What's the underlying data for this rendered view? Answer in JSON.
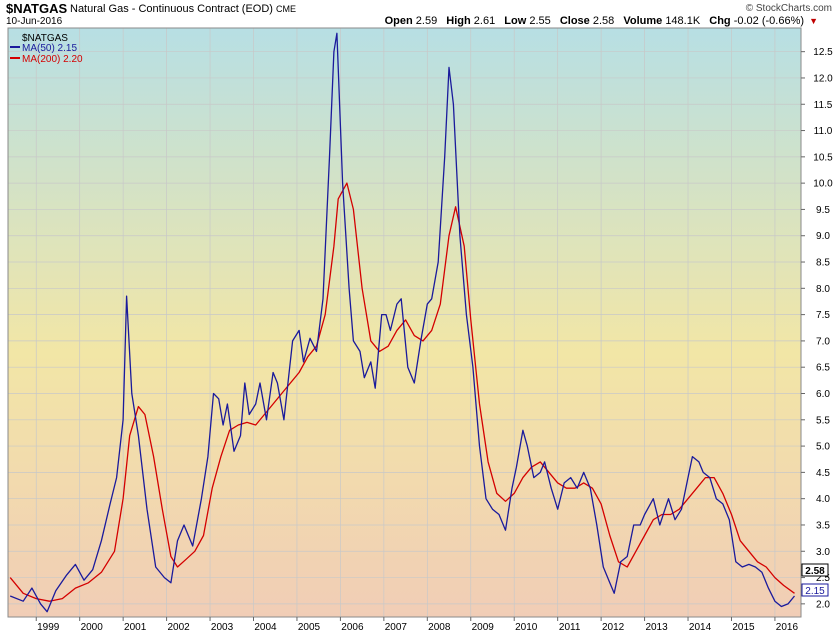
{
  "header": {
    "symbol": "$NATGAS",
    "name": "Natural Gas - Continuous Contract (EOD)",
    "exchange": "CME",
    "date": "10-Jun-2016",
    "source": "© StockCharts.com",
    "open_label": "Open",
    "open": "2.59",
    "high_label": "High",
    "high": "2.61",
    "low_label": "Low",
    "low": "2.55",
    "close_label": "Close",
    "close": "2.58",
    "volume_label": "Volume",
    "volume": "148.1K",
    "chg_label": "Chg",
    "chg": "-0.02 (-0.66%)"
  },
  "legend": {
    "title": "$NATGAS",
    "ma50": "MA(50) 2.15",
    "ma200": "MA(200) 2.20"
  },
  "colors": {
    "ma50": "#1a1a9c",
    "ma200": "#d40000",
    "bg_top": "#b7dfe4",
    "bg_mid": "#f2e6a6",
    "bg_bottom": "#f1cdb6",
    "grid": "#c8c8c8"
  },
  "chart_data": {
    "type": "line",
    "xlabel": "",
    "ylabel": "",
    "grid": true,
    "legend_placement": "top-left",
    "ylim": [
      1.75,
      12.95
    ],
    "xlim": [
      1998.35,
      2016.6
    ],
    "x_tick_labels": [
      "1999",
      "2000",
      "2001",
      "2002",
      "2003",
      "2004",
      "2005",
      "2006",
      "2007",
      "2008",
      "2009",
      "2010",
      "2011",
      "2012",
      "2013",
      "2014",
      "2015",
      "2016"
    ],
    "y_tick_labels": [
      "2.0",
      "2.5",
      "3.0",
      "3.5",
      "4.0",
      "4.5",
      "5.0",
      "5.5",
      "6.0",
      "6.5",
      "7.0",
      "7.5",
      "8.0",
      "8.5",
      "9.0",
      "9.5",
      "10.0",
      "10.5",
      "11.0",
      "11.5",
      "12.0",
      "12.5"
    ],
    "last_values": {
      "close": "2.58",
      "ma": "2.15"
    },
    "series": [
      {
        "name": "MA(50) 2.15",
        "color": "#1a1a9c",
        "points": [
          [
            1998.4,
            2.15
          ],
          [
            1998.7,
            2.05
          ],
          [
            1998.9,
            2.3
          ],
          [
            1999.1,
            2.0
          ],
          [
            1999.25,
            1.85
          ],
          [
            1999.45,
            2.25
          ],
          [
            1999.7,
            2.55
          ],
          [
            1999.9,
            2.75
          ],
          [
            2000.1,
            2.45
          ],
          [
            2000.3,
            2.65
          ],
          [
            2000.5,
            3.2
          ],
          [
            2000.7,
            3.9
          ],
          [
            2000.85,
            4.4
          ],
          [
            2001.0,
            5.5
          ],
          [
            2001.08,
            7.85
          ],
          [
            2001.2,
            6.0
          ],
          [
            2001.35,
            5.2
          ],
          [
            2001.55,
            3.8
          ],
          [
            2001.75,
            2.7
          ],
          [
            2001.95,
            2.5
          ],
          [
            2002.1,
            2.4
          ],
          [
            2002.25,
            3.2
          ],
          [
            2002.4,
            3.5
          ],
          [
            2002.6,
            3.1
          ],
          [
            2002.8,
            4.0
          ],
          [
            2002.95,
            4.8
          ],
          [
            2003.08,
            6.0
          ],
          [
            2003.2,
            5.9
          ],
          [
            2003.3,
            5.4
          ],
          [
            2003.4,
            5.8
          ],
          [
            2003.55,
            4.9
          ],
          [
            2003.7,
            5.2
          ],
          [
            2003.8,
            6.2
          ],
          [
            2003.9,
            5.6
          ],
          [
            2004.05,
            5.8
          ],
          [
            2004.15,
            6.2
          ],
          [
            2004.3,
            5.5
          ],
          [
            2004.45,
            6.4
          ],
          [
            2004.55,
            6.2
          ],
          [
            2004.7,
            5.5
          ],
          [
            2004.9,
            7.0
          ],
          [
            2005.05,
            7.2
          ],
          [
            2005.15,
            6.6
          ],
          [
            2005.3,
            7.05
          ],
          [
            2005.45,
            6.8
          ],
          [
            2005.6,
            7.8
          ],
          [
            2005.75,
            10.5
          ],
          [
            2005.85,
            12.5
          ],
          [
            2005.92,
            12.85
          ],
          [
            2006.05,
            10.0
          ],
          [
            2006.2,
            8.0
          ],
          [
            2006.3,
            7.0
          ],
          [
            2006.45,
            6.8
          ],
          [
            2006.55,
            6.3
          ],
          [
            2006.7,
            6.6
          ],
          [
            2006.8,
            6.1
          ],
          [
            2006.95,
            7.5
          ],
          [
            2007.05,
            7.5
          ],
          [
            2007.15,
            7.2
          ],
          [
            2007.3,
            7.7
          ],
          [
            2007.4,
            7.8
          ],
          [
            2007.55,
            6.5
          ],
          [
            2007.7,
            6.2
          ],
          [
            2007.85,
            7.0
          ],
          [
            2008.0,
            7.7
          ],
          [
            2008.1,
            7.8
          ],
          [
            2008.25,
            8.5
          ],
          [
            2008.4,
            10.5
          ],
          [
            2008.5,
            12.2
          ],
          [
            2008.6,
            11.5
          ],
          [
            2008.75,
            9.0
          ],
          [
            2008.9,
            7.5
          ],
          [
            2009.05,
            6.5
          ],
          [
            2009.2,
            5.0
          ],
          [
            2009.35,
            4.0
          ],
          [
            2009.5,
            3.8
          ],
          [
            2009.65,
            3.7
          ],
          [
            2009.8,
            3.4
          ],
          [
            2009.95,
            4.2
          ],
          [
            2010.05,
            4.6
          ],
          [
            2010.2,
            5.3
          ],
          [
            2010.3,
            5.0
          ],
          [
            2010.45,
            4.4
          ],
          [
            2010.6,
            4.5
          ],
          [
            2010.7,
            4.7
          ],
          [
            2010.85,
            4.2
          ],
          [
            2011.0,
            3.8
          ],
          [
            2011.15,
            4.3
          ],
          [
            2011.3,
            4.4
          ],
          [
            2011.45,
            4.2
          ],
          [
            2011.6,
            4.5
          ],
          [
            2011.75,
            4.2
          ],
          [
            2011.9,
            3.5
          ],
          [
            2012.05,
            2.7
          ],
          [
            2012.2,
            2.4
          ],
          [
            2012.3,
            2.2
          ],
          [
            2012.45,
            2.8
          ],
          [
            2012.6,
            2.9
          ],
          [
            2012.75,
            3.5
          ],
          [
            2012.9,
            3.5
          ],
          [
            2013.0,
            3.7
          ],
          [
            2013.2,
            4.0
          ],
          [
            2013.35,
            3.5
          ],
          [
            2013.55,
            4.0
          ],
          [
            2013.7,
            3.6
          ],
          [
            2013.85,
            3.8
          ],
          [
            2014.0,
            4.4
          ],
          [
            2014.1,
            4.8
          ],
          [
            2014.25,
            4.7
          ],
          [
            2014.35,
            4.5
          ],
          [
            2014.5,
            4.4
          ],
          [
            2014.65,
            4.0
          ],
          [
            2014.8,
            3.9
          ],
          [
            2014.95,
            3.6
          ],
          [
            2015.1,
            2.8
          ],
          [
            2015.25,
            2.7
          ],
          [
            2015.4,
            2.75
          ],
          [
            2015.55,
            2.7
          ],
          [
            2015.7,
            2.6
          ],
          [
            2015.85,
            2.3
          ],
          [
            2016.0,
            2.05
          ],
          [
            2016.15,
            1.95
          ],
          [
            2016.3,
            2.0
          ],
          [
            2016.45,
            2.15
          ]
        ]
      },
      {
        "name": "MA(200) 2.20",
        "color": "#d40000",
        "points": [
          [
            1998.4,
            2.5
          ],
          [
            1998.7,
            2.2
          ],
          [
            1999.0,
            2.1
          ],
          [
            1999.3,
            2.05
          ],
          [
            1999.6,
            2.1
          ],
          [
            1999.9,
            2.3
          ],
          [
            2000.2,
            2.4
          ],
          [
            2000.5,
            2.6
          ],
          [
            2000.8,
            3.0
          ],
          [
            2001.0,
            4.0
          ],
          [
            2001.15,
            5.2
          ],
          [
            2001.35,
            5.75
          ],
          [
            2001.5,
            5.6
          ],
          [
            2001.7,
            4.8
          ],
          [
            2001.9,
            3.8
          ],
          [
            2002.1,
            2.9
          ],
          [
            2002.25,
            2.7
          ],
          [
            2002.45,
            2.85
          ],
          [
            2002.65,
            3.0
          ],
          [
            2002.85,
            3.3
          ],
          [
            2003.05,
            4.2
          ],
          [
            2003.25,
            4.8
          ],
          [
            2003.45,
            5.3
          ],
          [
            2003.65,
            5.4
          ],
          [
            2003.85,
            5.45
          ],
          [
            2004.05,
            5.4
          ],
          [
            2004.25,
            5.6
          ],
          [
            2004.45,
            5.8
          ],
          [
            2004.65,
            6.0
          ],
          [
            2004.85,
            6.2
          ],
          [
            2005.05,
            6.4
          ],
          [
            2005.25,
            6.7
          ],
          [
            2005.45,
            6.9
          ],
          [
            2005.65,
            7.5
          ],
          [
            2005.85,
            8.8
          ],
          [
            2005.95,
            9.7
          ],
          [
            2006.15,
            10.0
          ],
          [
            2006.3,
            9.5
          ],
          [
            2006.5,
            8.0
          ],
          [
            2006.7,
            7.0
          ],
          [
            2006.9,
            6.8
          ],
          [
            2007.1,
            6.9
          ],
          [
            2007.3,
            7.2
          ],
          [
            2007.5,
            7.4
          ],
          [
            2007.7,
            7.1
          ],
          [
            2007.9,
            7.0
          ],
          [
            2008.1,
            7.2
          ],
          [
            2008.3,
            7.7
          ],
          [
            2008.5,
            9.0
          ],
          [
            2008.65,
            9.55
          ],
          [
            2008.85,
            8.8
          ],
          [
            2009.0,
            7.4
          ],
          [
            2009.2,
            5.8
          ],
          [
            2009.4,
            4.7
          ],
          [
            2009.6,
            4.1
          ],
          [
            2009.8,
            3.95
          ],
          [
            2010.0,
            4.1
          ],
          [
            2010.2,
            4.4
          ],
          [
            2010.4,
            4.6
          ],
          [
            2010.6,
            4.7
          ],
          [
            2010.8,
            4.5
          ],
          [
            2011.0,
            4.3
          ],
          [
            2011.2,
            4.2
          ],
          [
            2011.4,
            4.2
          ],
          [
            2011.6,
            4.3
          ],
          [
            2011.8,
            4.2
          ],
          [
            2012.0,
            3.9
          ],
          [
            2012.2,
            3.3
          ],
          [
            2012.4,
            2.8
          ],
          [
            2012.6,
            2.7
          ],
          [
            2012.8,
            3.0
          ],
          [
            2013.0,
            3.3
          ],
          [
            2013.2,
            3.6
          ],
          [
            2013.4,
            3.7
          ],
          [
            2013.6,
            3.7
          ],
          [
            2013.8,
            3.8
          ],
          [
            2014.0,
            4.0
          ],
          [
            2014.2,
            4.2
          ],
          [
            2014.4,
            4.4
          ],
          [
            2014.6,
            4.4
          ],
          [
            2014.8,
            4.1
          ],
          [
            2015.0,
            3.7
          ],
          [
            2015.2,
            3.2
          ],
          [
            2015.4,
            3.0
          ],
          [
            2015.6,
            2.8
          ],
          [
            2015.8,
            2.7
          ],
          [
            2016.0,
            2.5
          ],
          [
            2016.2,
            2.35
          ],
          [
            2016.45,
            2.2
          ]
        ]
      }
    ]
  }
}
